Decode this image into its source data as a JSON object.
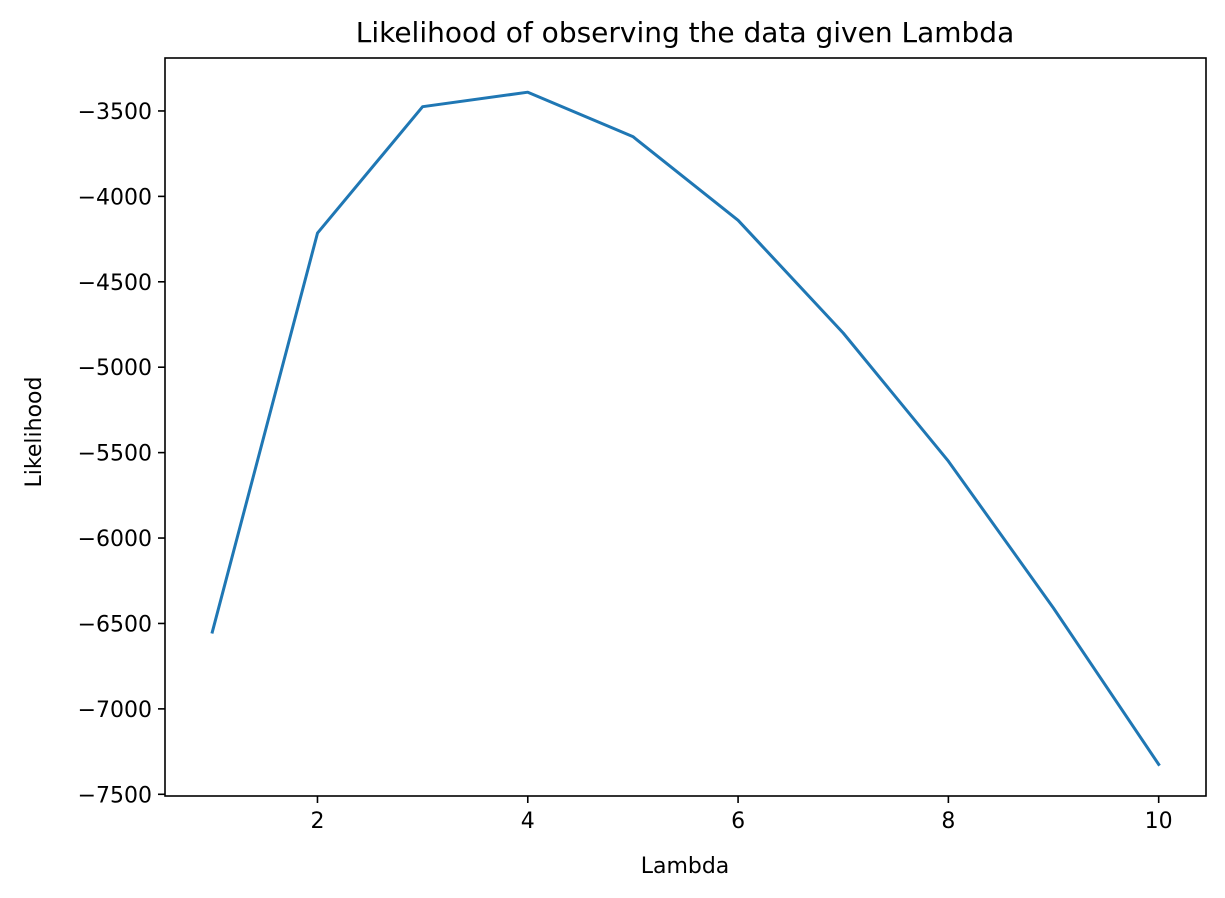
{
  "chart_data": {
    "type": "line",
    "title": "Likelihood of observing the data given Lambda",
    "xlabel": "Lambda",
    "ylabel": "Likelihood",
    "xlim": [
      0.55,
      10.45
    ],
    "ylim": [
      -7510,
      -3190
    ],
    "x_ticks": [
      2,
      4,
      6,
      8,
      10
    ],
    "x_tick_labels": [
      "2",
      "4",
      "6",
      "8",
      "10"
    ],
    "y_ticks": [
      -3500,
      -4000,
      -4500,
      -5000,
      -5500,
      -6000,
      -6500,
      -7000,
      -7500
    ],
    "y_tick_labels": [
      "−3500",
      "−4000",
      "−4500",
      "−5000",
      "−5500",
      "−6000",
      "−6500",
      "−7000",
      "−7500"
    ],
    "grid": false,
    "series": [
      {
        "color": "#1f77b4",
        "x": [
          1,
          2,
          3,
          4,
          5,
          6,
          7,
          8,
          9,
          10
        ],
        "y": [
          -6550,
          -4215,
          -3475,
          -3390,
          -3650,
          -4140,
          -4800,
          -5550,
          -6410,
          -7325
        ]
      }
    ]
  }
}
